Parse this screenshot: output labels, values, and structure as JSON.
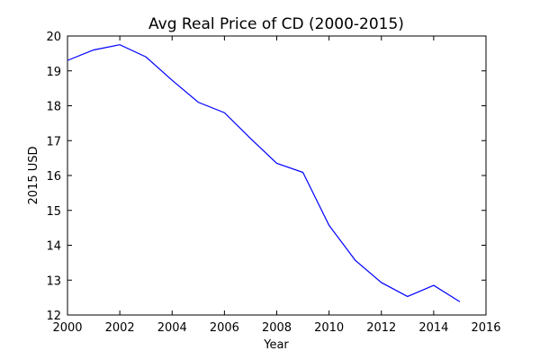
{
  "chart_data": {
    "type": "line",
    "title": "Avg Real Price of CD (2000-2015)",
    "xlabel": "Year",
    "ylabel": "2015 USD",
    "xlim": [
      2000,
      2016
    ],
    "ylim": [
      12,
      20
    ],
    "xticks": [
      2000,
      2002,
      2004,
      2006,
      2008,
      2010,
      2012,
      2014,
      2016
    ],
    "yticks": [
      12,
      13,
      14,
      15,
      16,
      17,
      18,
      19,
      20
    ],
    "grid": false,
    "series": [
      {
        "name": "Avg Real Price",
        "color": "#0000ff",
        "x": [
          2000,
          2001,
          2002,
          2003,
          2004,
          2005,
          2006,
          2007,
          2008,
          2009,
          2010,
          2011,
          2012,
          2013,
          2014,
          2015
        ],
        "y": [
          19.3,
          19.6,
          19.75,
          19.4,
          18.73,
          18.1,
          17.8,
          17.06,
          16.35,
          16.09,
          14.57,
          13.57,
          12.93,
          12.53,
          12.85,
          12.38
        ]
      }
    ]
  }
}
